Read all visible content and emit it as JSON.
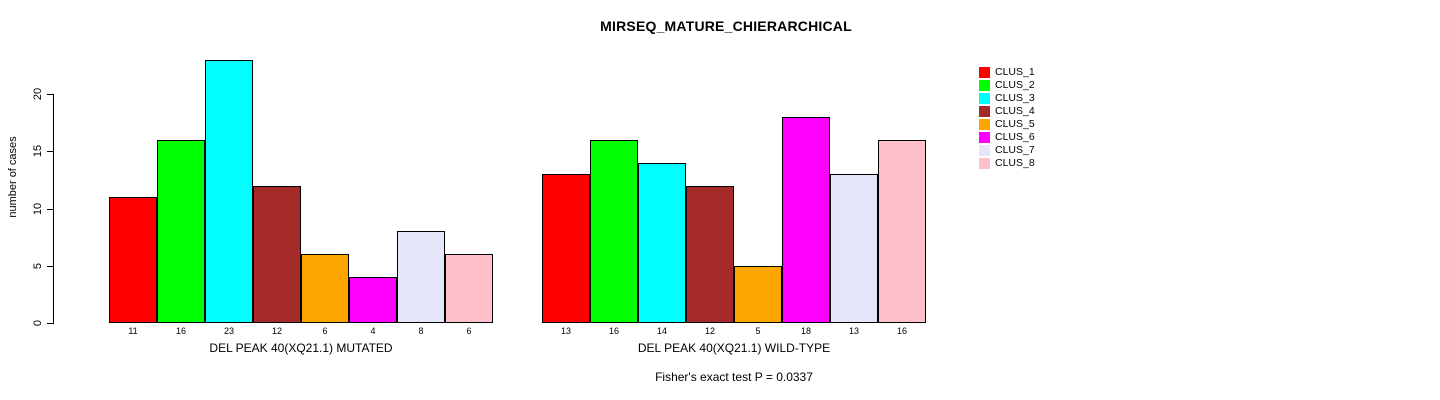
{
  "title": "MIRSEQ_MATURE_CHIERARCHICAL",
  "chart_data": {
    "type": "bar",
    "title": "MIRSEQ_MATURE_CHIERARCHICAL",
    "xlabel": "",
    "ylabel": "number of cases",
    "ylim": [
      0,
      23
    ],
    "yticks": [
      0,
      5,
      10,
      15,
      20
    ],
    "grid": false,
    "legend_position": "right",
    "legend_entries": [
      "CLUS_1",
      "CLUS_2",
      "CLUS_3",
      "CLUS_4",
      "CLUS_5",
      "CLUS_6",
      "CLUS_7",
      "CLUS_8"
    ],
    "colors": [
      "#ff0000",
      "#00ff00",
      "#00ffff",
      "#a52a2a",
      "#ffa500",
      "#ff00ff",
      "#e6e6fa",
      "#ffc0cb"
    ],
    "series": [
      {
        "name": "DEL PEAK 40(XQ21.1) MUTATED",
        "values": [
          11,
          16,
          23,
          12,
          6,
          4,
          8,
          6
        ]
      },
      {
        "name": "DEL PEAK 40(XQ21.1) WILD-TYPE",
        "values": [
          13,
          16,
          14,
          12,
          5,
          18,
          13,
          16
        ]
      }
    ],
    "bar_value_labels": [
      [
        "11",
        "16",
        "23",
        "12",
        "6",
        "4",
        "8",
        "6"
      ],
      [
        "13",
        "16",
        "14",
        "12",
        "5",
        "18",
        "13",
        "16"
      ]
    ],
    "annotation": "Fisher's exact test P = 0.0337"
  }
}
